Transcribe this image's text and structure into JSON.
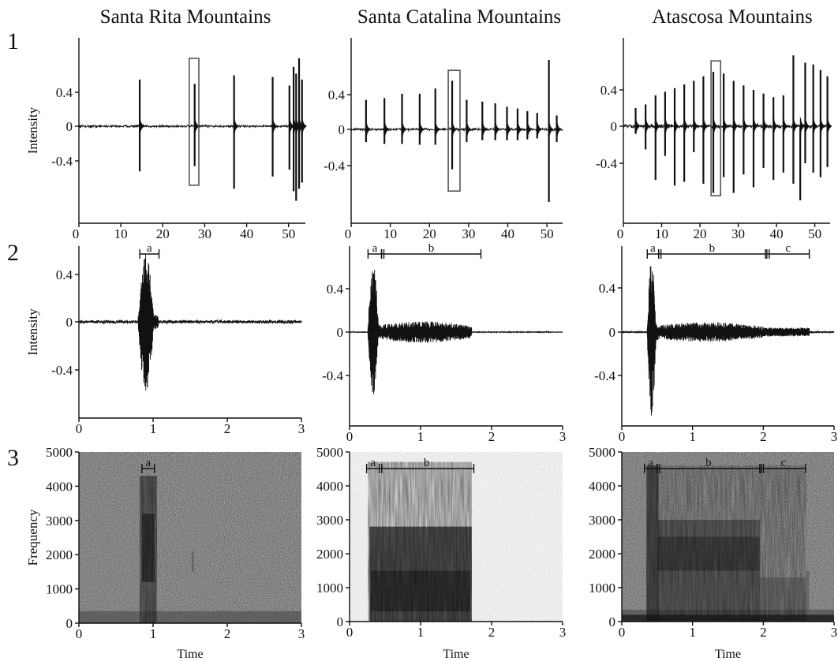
{
  "panel_titles": [
    "Santa Rita Mountains",
    "Santa Catalina Mountains",
    "Atascosa Mountains"
  ],
  "row_labels": [
    "1",
    "2",
    "3"
  ],
  "colors": {
    "ink": "#111111",
    "box": "#555555",
    "background": "#ffffff"
  },
  "chart_data": [
    {
      "id": "r1c1",
      "type": "line",
      "title": "Santa Rita Mountains",
      "row": "1",
      "ylabel": "Intensity",
      "xlabel": "",
      "xlim": [
        0,
        54
      ],
      "ylim": [
        -0.8,
        0.8
      ],
      "xticks": [
        0,
        10,
        20,
        30,
        40,
        50
      ],
      "yticks": [
        0.4,
        0,
        -0.4
      ],
      "baseline_noise": 0.02,
      "spikes": [
        {
          "t": 14.5,
          "up": 0.55,
          "down": 0.52
        },
        {
          "t": 27.6,
          "up": 0.5,
          "down": 0.46
        },
        {
          "t": 37.0,
          "up": 0.6,
          "down": 0.72
        },
        {
          "t": 46.2,
          "up": 0.58,
          "down": 0.58
        },
        {
          "t": 50.2,
          "up": 0.48,
          "down": 0.5
        },
        {
          "t": 51.2,
          "up": 0.7,
          "down": 0.75
        },
        {
          "t": 51.8,
          "up": 0.62,
          "down": 0.86
        },
        {
          "t": 52.5,
          "up": 0.8,
          "down": 0.72
        },
        {
          "t": 53.2,
          "up": 0.55,
          "down": 0.65
        }
      ],
      "highlight_box": [
        26.3,
        28.6,
        -0.68,
        0.8
      ]
    },
    {
      "id": "r1c2",
      "type": "line",
      "title": "Santa Catalina Mountains",
      "row": "1",
      "ylabel": "",
      "xlabel": "",
      "xlim": [
        0,
        54
      ],
      "ylim": [
        -0.8,
        0.8
      ],
      "xticks": [
        0,
        10,
        20,
        30,
        40,
        50
      ],
      "yticks": [
        0.4,
        0,
        -0.4
      ],
      "baseline_noise": 0.02,
      "spikes": [
        {
          "t": 3.8,
          "up": 0.34,
          "down": 0.14
        },
        {
          "t": 8.5,
          "up": 0.36,
          "down": 0.16
        },
        {
          "t": 13.0,
          "up": 0.41,
          "down": 0.16
        },
        {
          "t": 17.5,
          "up": 0.41,
          "down": 0.17
        },
        {
          "t": 21.5,
          "up": 0.47,
          "down": 0.17
        },
        {
          "t": 25.8,
          "up": 0.56,
          "down": 0.44
        },
        {
          "t": 29.5,
          "up": 0.34,
          "down": 0.14
        },
        {
          "t": 33.5,
          "up": 0.32,
          "down": 0.12
        },
        {
          "t": 36.8,
          "up": 0.3,
          "down": 0.12
        },
        {
          "t": 39.8,
          "up": 0.26,
          "down": 0.12
        },
        {
          "t": 42.5,
          "up": 0.24,
          "down": 0.12
        },
        {
          "t": 45.0,
          "up": 0.21,
          "down": 0.11
        },
        {
          "t": 47.5,
          "up": 0.19,
          "down": 0.1
        },
        {
          "t": 50.5,
          "up": 0.8,
          "down": 0.8
        },
        {
          "t": 52.5,
          "up": 0.16,
          "down": 0.14
        }
      ],
      "highlight_box": [
        24.8,
        27.8,
        -0.68,
        0.68
      ]
    },
    {
      "id": "r1c3",
      "type": "line",
      "title": "Atascosa Mountains",
      "row": "1",
      "ylabel": "",
      "xlabel": "",
      "xlim": [
        0,
        54
      ],
      "ylim": [
        -0.8,
        0.8
      ],
      "xticks": [
        0,
        10,
        20,
        30,
        40,
        50
      ],
      "yticks": [
        0.4,
        0,
        -0.4
      ],
      "baseline_noise": 0.03,
      "spikes": [
        {
          "t": 3.2,
          "up": 0.2,
          "down": 0.08
        },
        {
          "t": 5.8,
          "up": 0.24,
          "down": 0.25
        },
        {
          "t": 8.4,
          "up": 0.34,
          "down": 0.58
        },
        {
          "t": 10.9,
          "up": 0.38,
          "down": 0.32
        },
        {
          "t": 13.4,
          "up": 0.42,
          "down": 0.64
        },
        {
          "t": 15.9,
          "up": 0.46,
          "down": 0.6
        },
        {
          "t": 18.4,
          "up": 0.5,
          "down": 0.28
        },
        {
          "t": 20.9,
          "up": 0.55,
          "down": 0.62
        },
        {
          "t": 23.5,
          "up": 0.6,
          "down": 0.72
        },
        {
          "t": 26.2,
          "up": 0.58,
          "down": 0.55
        },
        {
          "t": 28.8,
          "up": 0.5,
          "down": 0.72
        },
        {
          "t": 31.4,
          "up": 0.45,
          "down": 0.52
        },
        {
          "t": 34.0,
          "up": 0.4,
          "down": 0.66
        },
        {
          "t": 36.6,
          "up": 0.36,
          "down": 0.45
        },
        {
          "t": 39.2,
          "up": 0.32,
          "down": 0.58
        },
        {
          "t": 41.8,
          "up": 0.34,
          "down": 0.5
        },
        {
          "t": 44.4,
          "up": 0.78,
          "down": 0.62
        },
        {
          "t": 46.2,
          "up": 0.0,
          "down": 0.8
        },
        {
          "t": 47.5,
          "up": 0.7,
          "down": 0.4
        },
        {
          "t": 49.6,
          "up": 0.68,
          "down": 0.5
        },
        {
          "t": 51.5,
          "up": 0.62,
          "down": 0.55
        },
        {
          "t": 53.3,
          "up": 0.55,
          "down": 0.44
        }
      ],
      "highlight_box": [
        22.9,
        25.4,
        -0.75,
        0.72
      ]
    },
    {
      "id": "r2c1",
      "type": "line",
      "row": "2",
      "ylabel": "Intensity",
      "xlabel": "",
      "xlim": [
        0,
        3
      ],
      "ylim": [
        -0.8,
        0.8
      ],
      "xticks": [
        0,
        1,
        2,
        3
      ],
      "yticks": [
        0.4,
        0,
        -0.4
      ],
      "baseline_noise": 0.02,
      "burst": {
        "start": 0.8,
        "end": 1.07,
        "peak_up": 0.58,
        "peak_down": 0.6
      },
      "segments": [
        {
          "label": "a",
          "start": 0.82,
          "end": 1.08
        }
      ]
    },
    {
      "id": "r2c2",
      "type": "line",
      "row": "2",
      "ylabel": "",
      "xlabel": "",
      "xlim": [
        0,
        3
      ],
      "ylim": [
        -0.8,
        0.8
      ],
      "xticks": [
        0,
        1,
        2,
        3
      ],
      "yticks": [
        0.4,
        0,
        -0.4
      ],
      "baseline_noise": 0.005,
      "burst": {
        "start": 0.26,
        "end": 0.45,
        "peak_up": 0.66,
        "peak_down": 0.58
      },
      "tail": {
        "start": 0.45,
        "end": 1.72,
        "amp": 0.1
      },
      "segments": [
        {
          "label": "a",
          "start": 0.26,
          "end": 0.45
        },
        {
          "label": "b",
          "start": 0.45,
          "end": 1.85
        }
      ]
    },
    {
      "id": "r2c3",
      "type": "line",
      "row": "2",
      "ylabel": "",
      "xlabel": "",
      "xlim": [
        0,
        3
      ],
      "ylim": [
        -0.8,
        0.8
      ],
      "xticks": [
        0,
        1,
        2,
        3
      ],
      "yticks": [
        0.4,
        0,
        -0.4
      ],
      "baseline_noise": 0.01,
      "burst": {
        "start": 0.36,
        "end": 0.52,
        "peak_up": 0.68,
        "peak_down": 0.78
      },
      "tail": {
        "start": 0.52,
        "end": 2.0,
        "amp": 0.09
      },
      "tail2": {
        "start": 2.0,
        "end": 2.65,
        "amp": 0.04
      },
      "segments": [
        {
          "label": "a",
          "start": 0.36,
          "end": 0.52
        },
        {
          "label": "b",
          "start": 0.52,
          "end": 2.03
        },
        {
          "label": "c",
          "start": 2.05,
          "end": 2.65
        }
      ]
    },
    {
      "id": "r3c1",
      "type": "heatmap",
      "row": "3",
      "ylabel": "Frequency",
      "xlabel": "Time",
      "xlim": [
        0,
        3
      ],
      "ylim": [
        0,
        5000
      ],
      "xticks": [
        0,
        1,
        2,
        3
      ],
      "yticks": [
        0,
        1000,
        2000,
        3000,
        4000,
        5000
      ],
      "background": "noise",
      "segments": [
        {
          "label": "a",
          "start": 0.85,
          "end": 1.02
        }
      ]
    },
    {
      "id": "r3c2",
      "type": "heatmap",
      "row": "3",
      "ylabel": "",
      "xlabel": "Time",
      "xlim": [
        0,
        3
      ],
      "ylim": [
        0,
        5000
      ],
      "xticks": [
        0,
        1,
        2,
        3
      ],
      "yticks": [
        0,
        1000,
        2000,
        3000,
        4000,
        5000
      ],
      "background": "clear",
      "segments": [
        {
          "label": "a",
          "start": 0.24,
          "end": 0.42
        },
        {
          "label": "b",
          "start": 0.42,
          "end": 1.75
        }
      ]
    },
    {
      "id": "r3c3",
      "type": "heatmap",
      "row": "3",
      "ylabel": "",
      "xlabel": "Time",
      "xlim": [
        0,
        3
      ],
      "ylim": [
        0,
        5000
      ],
      "xticks": [
        0,
        1,
        2,
        3
      ],
      "yticks": [
        0,
        1000,
        2000,
        3000,
        4000,
        5000
      ],
      "background": "noise",
      "segments": [
        {
          "label": "a",
          "start": 0.32,
          "end": 0.5
        },
        {
          "label": "b",
          "start": 0.5,
          "end": 1.95
        },
        {
          "label": "c",
          "start": 1.97,
          "end": 2.6
        }
      ]
    }
  ]
}
